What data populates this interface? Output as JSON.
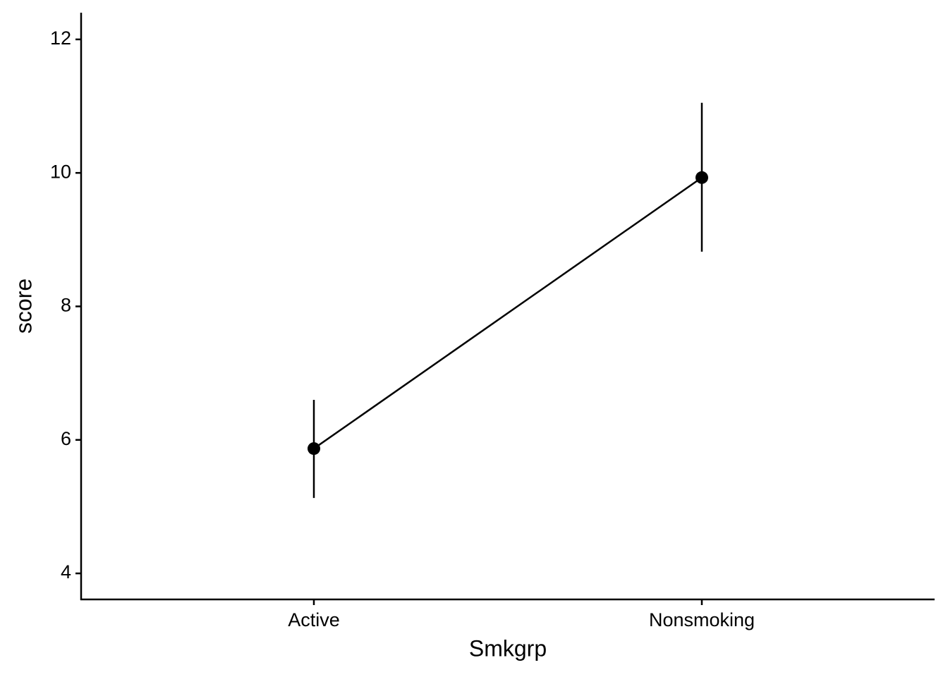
{
  "chart_data": {
    "type": "pointrange",
    "x_label": "Smkgrp",
    "y_label": "score",
    "categories": [
      "Active",
      "Nonsmoking"
    ],
    "series": [
      {
        "name": "score",
        "color": "#000000",
        "values": [
          5.87,
          9.93
        ],
        "lower": [
          5.13,
          8.82
        ],
        "upper": [
          6.6,
          11.05
        ]
      }
    ],
    "ylim": [
      3.61,
      12.4
    ],
    "yticks": [
      4,
      6,
      8,
      10,
      12
    ],
    "grid": false
  }
}
